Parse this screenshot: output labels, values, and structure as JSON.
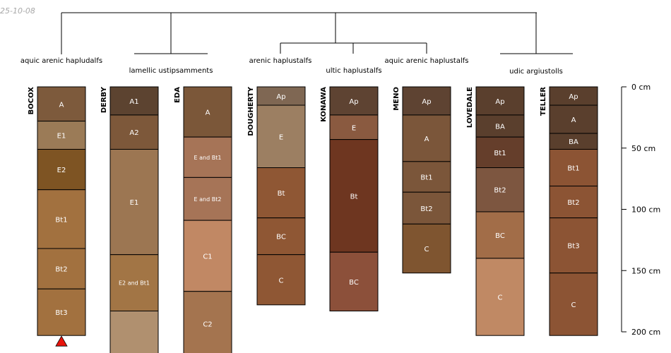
{
  "date_text": "25-10-08",
  "chart_data": {
    "type": "soil-profile-sketch",
    "title": "",
    "depth_unit": "cm",
    "depth_ticks": [
      {
        "value": 0,
        "label": "0  cm"
      },
      {
        "value": 50,
        "label": "50  cm"
      },
      {
        "value": 100,
        "label": "100  cm"
      },
      {
        "value": 150,
        "label": "150  cm"
      },
      {
        "value": 200,
        "label": "200  cm"
      }
    ],
    "classification_groups": [
      {
        "label": "aquic arenic hapludalfs",
        "profiles": [
          "BOCOX"
        ]
      },
      {
        "label": "lamellic ustipsamments",
        "profiles": [
          "DERBY",
          "EDA"
        ]
      },
      {
        "label": "arenic haplustalfs",
        "profiles": [
          "DOUGHERTY"
        ]
      },
      {
        "label": "ultic haplustalfs",
        "profiles": [
          "KONAWA"
        ]
      },
      {
        "label": "aquic arenic haplustalfs",
        "profiles": [
          "MENO"
        ]
      },
      {
        "label": "udic argiustolls",
        "profiles": [
          "LOVEDALE",
          "TELLER"
        ]
      }
    ],
    "profiles": [
      {
        "name": "BOCOX",
        "bottom_marker": "triangle",
        "marker_color": "#e8140c",
        "horizons": [
          {
            "name": "A",
            "top": 0,
            "bottom": 28,
            "color": "#7d5a3c"
          },
          {
            "name": "E1",
            "top": 28,
            "bottom": 51,
            "color": "#9b7b57"
          },
          {
            "name": "E2",
            "top": 51,
            "bottom": 84,
            "color": "#7e5423"
          },
          {
            "name": "Bt1",
            "top": 84,
            "bottom": 132,
            "color": "#a2713f"
          },
          {
            "name": "Bt2",
            "top": 132,
            "bottom": 165,
            "color": "#a2713f"
          },
          {
            "name": "Bt3",
            "top": 165,
            "bottom": 203,
            "color": "#a2713f"
          }
        ]
      },
      {
        "name": "DERBY",
        "horizons": [
          {
            "name": "A1",
            "top": 0,
            "bottom": 23,
            "color": "#5c4330"
          },
          {
            "name": "A2",
            "top": 23,
            "bottom": 51,
            "color": "#7d583a"
          },
          {
            "name": "E1",
            "top": 51,
            "bottom": 137,
            "color": "#9c7652"
          },
          {
            "name": "E2 and Bt1",
            "top": 137,
            "bottom": 183,
            "color": "#a27545"
          },
          {
            "name": "",
            "top": 183,
            "bottom": 220,
            "color": "#b0906f"
          }
        ]
      },
      {
        "name": "EDA",
        "horizons": [
          {
            "name": "A",
            "top": 0,
            "bottom": 41,
            "color": "#7b5739"
          },
          {
            "name": "E and Bt1",
            "top": 41,
            "bottom": 74,
            "color": "#a67457"
          },
          {
            "name": "E and Bt2",
            "top": 74,
            "bottom": 109,
            "color": "#a67457"
          },
          {
            "name": "C1",
            "top": 109,
            "bottom": 167,
            "color": "#c18864"
          },
          {
            "name": "C2",
            "top": 167,
            "bottom": 220,
            "color": "#a4744f"
          }
        ]
      },
      {
        "name": "DOUGHERTY",
        "horizons": [
          {
            "name": "Ap",
            "top": 0,
            "bottom": 15,
            "color": "#7f6753"
          },
          {
            "name": "E",
            "top": 15,
            "bottom": 66,
            "color": "#9c7f62"
          },
          {
            "name": "Bt",
            "top": 66,
            "bottom": 107,
            "color": "#8f5734"
          },
          {
            "name": "BC",
            "top": 107,
            "bottom": 137,
            "color": "#8f5734"
          },
          {
            "name": "C",
            "top": 137,
            "bottom": 178,
            "color": "#8f5734"
          }
        ]
      },
      {
        "name": "KONAWA",
        "horizons": [
          {
            "name": "Ap",
            "top": 0,
            "bottom": 23,
            "color": "#5e4332"
          },
          {
            "name": "E",
            "top": 23,
            "bottom": 43,
            "color": "#8a5a40"
          },
          {
            "name": "Bt",
            "top": 43,
            "bottom": 135,
            "color": "#6e3620"
          },
          {
            "name": "BC",
            "top": 135,
            "bottom": 183,
            "color": "#8c503a"
          }
        ]
      },
      {
        "name": "MENO",
        "horizons": [
          {
            "name": "Ap",
            "top": 0,
            "bottom": 23,
            "color": "#5e4332"
          },
          {
            "name": "A",
            "top": 23,
            "bottom": 61,
            "color": "#7b563a"
          },
          {
            "name": "Bt1",
            "top": 61,
            "bottom": 86,
            "color": "#7b563a"
          },
          {
            "name": "Bt2",
            "top": 86,
            "bottom": 112,
            "color": "#7b563a"
          },
          {
            "name": "C",
            "top": 112,
            "bottom": 152,
            "color": "#7f5530"
          }
        ]
      },
      {
        "name": "LOVEDALE",
        "horizons": [
          {
            "name": "Ap",
            "top": 0,
            "bottom": 23,
            "color": "#5a3f2d"
          },
          {
            "name": "BA",
            "top": 23,
            "bottom": 41,
            "color": "#5a3f2d"
          },
          {
            "name": "Bt1",
            "top": 41,
            "bottom": 66,
            "color": "#653e2b"
          },
          {
            "name": "Bt2",
            "top": 66,
            "bottom": 102,
            "color": "#7d5640"
          },
          {
            "name": "BC",
            "top": 102,
            "bottom": 140,
            "color": "#a26d48"
          },
          {
            "name": "C",
            "top": 140,
            "bottom": 203,
            "color": "#c08964"
          }
        ]
      },
      {
        "name": "TELLER",
        "horizons": [
          {
            "name": "Ap",
            "top": 0,
            "bottom": 15,
            "color": "#5a3f2d"
          },
          {
            "name": "A",
            "top": 15,
            "bottom": 38,
            "color": "#5a3f2d"
          },
          {
            "name": "BA",
            "top": 38,
            "bottom": 51,
            "color": "#5a3f2d"
          },
          {
            "name": "Bt1",
            "top": 51,
            "bottom": 81,
            "color": "#8c5434"
          },
          {
            "name": "Bt2",
            "top": 81,
            "bottom": 107,
            "color": "#8c5434"
          },
          {
            "name": "Bt3",
            "top": 107,
            "bottom": 152,
            "color": "#8c5434"
          },
          {
            "name": "C",
            "top": 152,
            "bottom": 203,
            "color": "#8c5434"
          }
        ]
      }
    ]
  }
}
